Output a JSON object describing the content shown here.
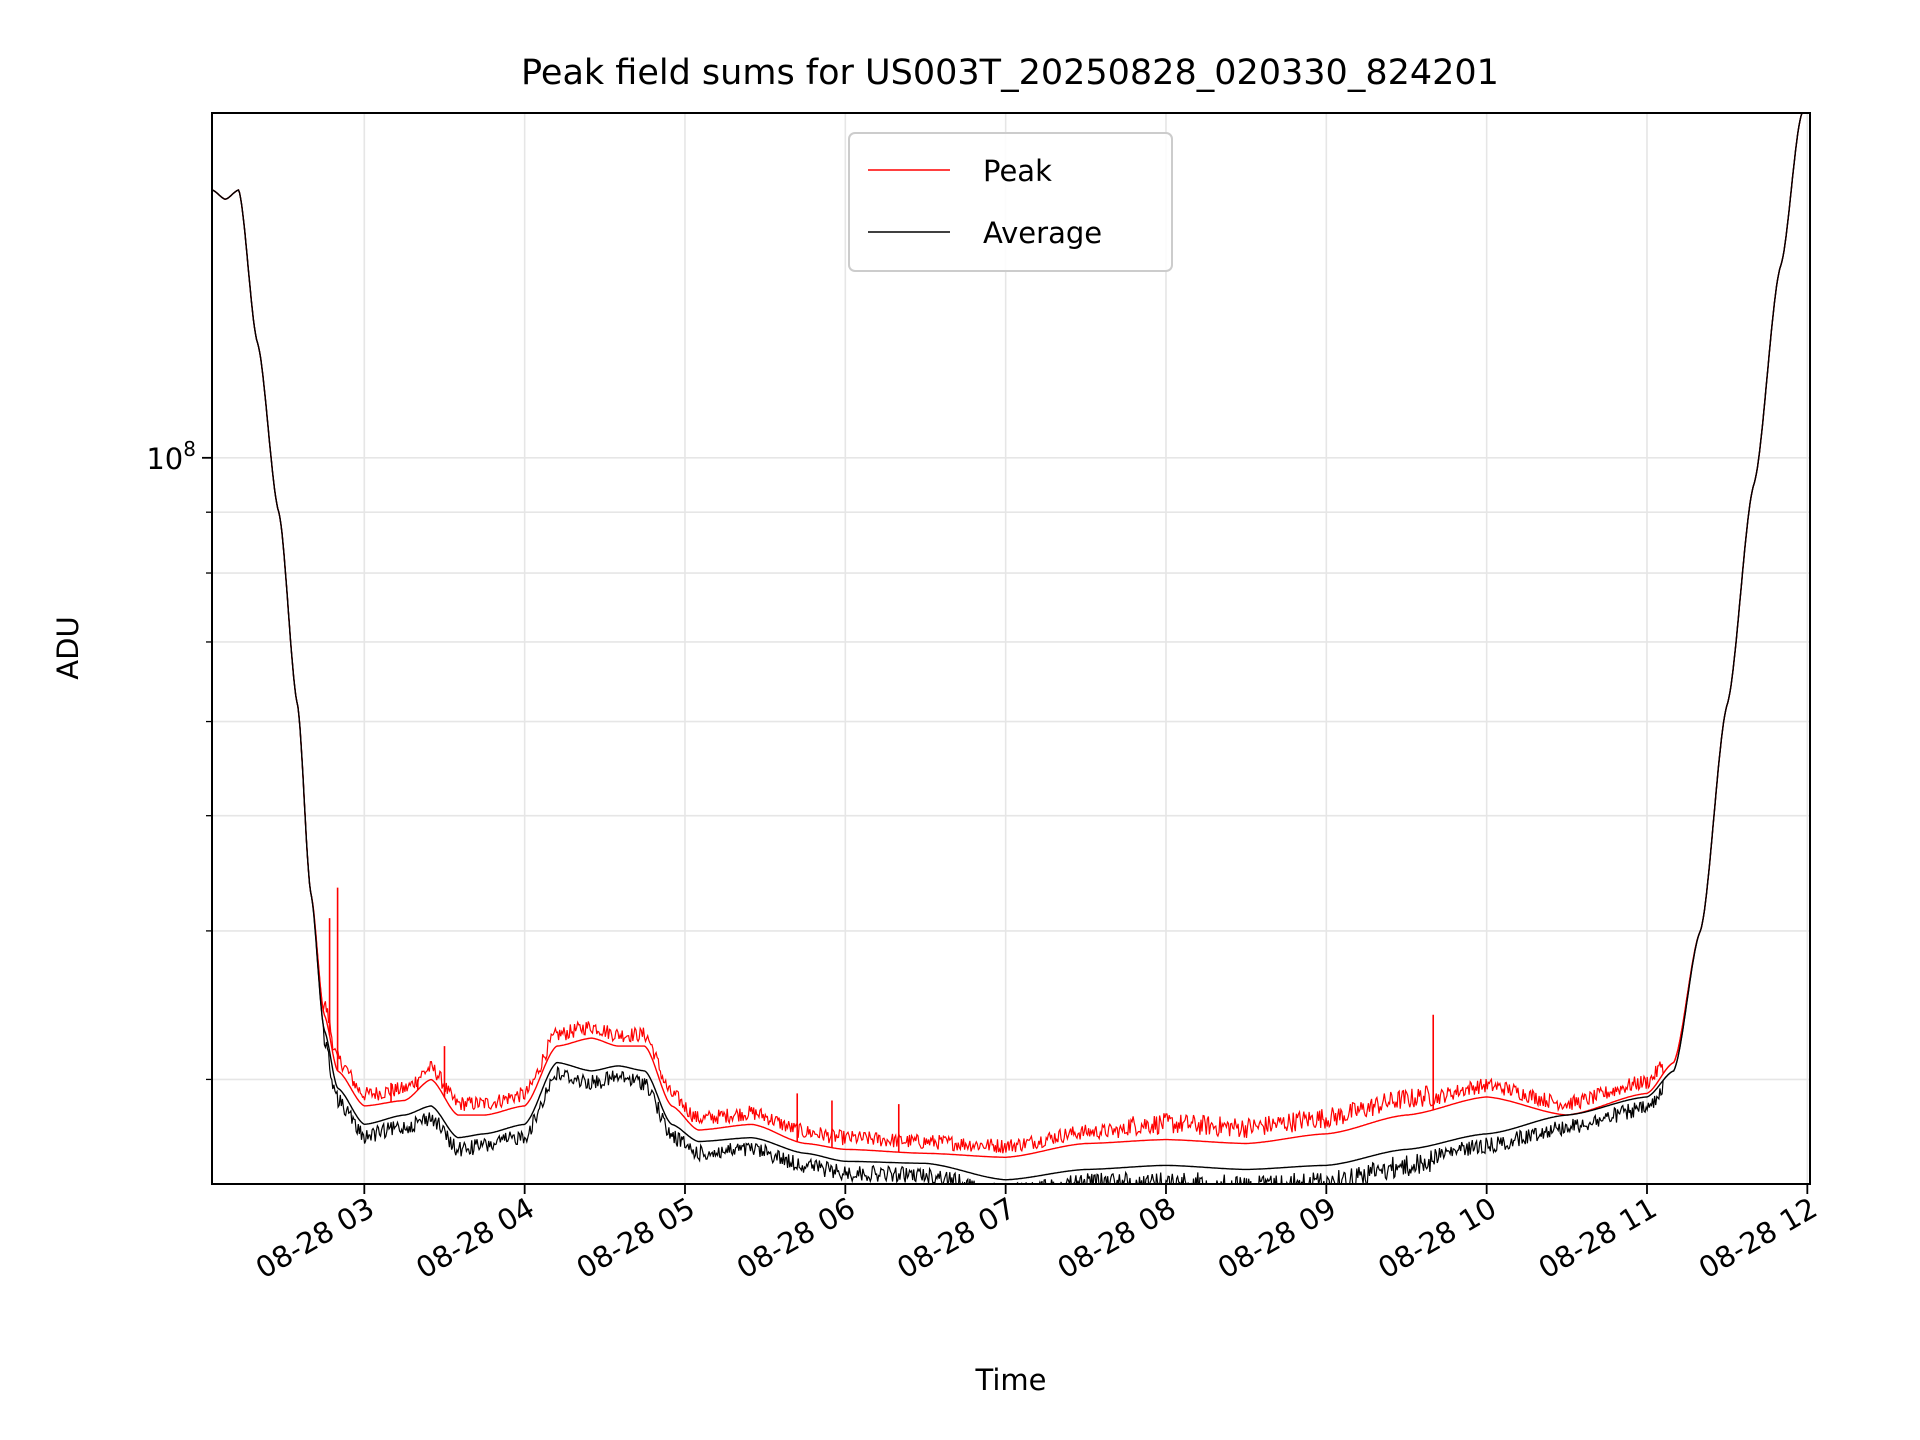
{
  "chart_data": {
    "type": "line",
    "title": "Peak field sums for US003T_20250828_020330_824201",
    "xlabel": "Time",
    "ylabel": "ADU",
    "y_scale": "log",
    "grid": true,
    "legend_placement": "upper center",
    "xlim": [
      "2025-08-28 02:03",
      "2025-08-28 12:01"
    ],
    "ylim": [
      24500000,
      195000000
    ],
    "x_ticks": [
      "08-28 03",
      "08-28 04",
      "08-28 05",
      "08-28 06",
      "08-28 07",
      "08-28 08",
      "08-28 09",
      "08-28 10",
      "08-28 11",
      "08-28 12"
    ],
    "y_ticks": [
      {
        "label": "10",
        "exponent": "8",
        "value": 100000000
      }
    ],
    "series": [
      {
        "name": "Peak",
        "color": "#ff0000",
        "x": [
          "2025-08-28 02:03",
          "2025-08-28 02:08",
          "2025-08-28 02:13",
          "2025-08-28 02:20",
          "2025-08-28 02:28",
          "2025-08-28 02:35",
          "2025-08-28 02:40",
          "2025-08-28 02:45",
          "2025-08-28 02:50",
          "2025-08-28 03:00",
          "2025-08-28 03:15",
          "2025-08-28 03:25",
          "2025-08-28 03:35",
          "2025-08-28 03:45",
          "2025-08-28 04:00",
          "2025-08-28 04:12",
          "2025-08-28 04:25",
          "2025-08-28 04:35",
          "2025-08-28 04:45",
          "2025-08-28 04:55",
          "2025-08-28 05:05",
          "2025-08-28 05:25",
          "2025-08-28 05:45",
          "2025-08-28 06:00",
          "2025-08-28 06:30",
          "2025-08-28 07:00",
          "2025-08-28 07:30",
          "2025-08-28 08:00",
          "2025-08-28 08:30",
          "2025-08-28 09:00",
          "2025-08-28 09:30",
          "2025-08-28 10:00",
          "2025-08-28 10:30",
          "2025-08-28 11:00",
          "2025-08-28 11:10",
          "2025-08-28 11:20",
          "2025-08-28 11:30",
          "2025-08-28 11:40",
          "2025-08-28 11:50",
          "2025-08-28 11:58"
        ],
        "y": [
          168000000,
          165000000,
          168000000,
          125000000,
          90000000,
          62000000,
          43000000,
          34000000,
          30500000,
          28500000,
          28800000,
          30000000,
          28000000,
          28000000,
          28500000,
          32000000,
          32500000,
          32000000,
          32000000,
          28500000,
          27200000,
          27500000,
          26500000,
          26200000,
          26000000,
          25800000,
          26500000,
          26700000,
          26500000,
          27000000,
          28000000,
          29000000,
          28000000,
          29200000,
          31000000,
          40000000,
          62000000,
          95000000,
          145000000,
          195000000
        ],
        "spikes": [
          {
            "x": "2025-08-28 02:47",
            "y": 41000000
          },
          {
            "x": "2025-08-28 02:50",
            "y": 43500000
          },
          {
            "x": "2025-08-28 03:10",
            "y": 29800000
          },
          {
            "x": "2025-08-28 03:20",
            "y": 30000000
          },
          {
            "x": "2025-08-28 03:30",
            "y": 32000000
          },
          {
            "x": "2025-08-28 05:42",
            "y": 29200000
          },
          {
            "x": "2025-08-28 05:55",
            "y": 28800000
          },
          {
            "x": "2025-08-28 06:20",
            "y": 28600000
          },
          {
            "x": "2025-08-28 09:40",
            "y": 34000000
          }
        ]
      },
      {
        "name": "Average",
        "color": "#000000",
        "x": [
          "2025-08-28 02:03",
          "2025-08-28 02:08",
          "2025-08-28 02:13",
          "2025-08-28 02:20",
          "2025-08-28 02:28",
          "2025-08-28 02:35",
          "2025-08-28 02:40",
          "2025-08-28 02:45",
          "2025-08-28 02:50",
          "2025-08-28 03:00",
          "2025-08-28 03:15",
          "2025-08-28 03:25",
          "2025-08-28 03:35",
          "2025-08-28 03:45",
          "2025-08-28 04:00",
          "2025-08-28 04:12",
          "2025-08-28 04:25",
          "2025-08-28 04:35",
          "2025-08-28 04:45",
          "2025-08-28 04:55",
          "2025-08-28 05:05",
          "2025-08-28 05:25",
          "2025-08-28 05:45",
          "2025-08-28 06:00",
          "2025-08-28 06:30",
          "2025-08-28 07:00",
          "2025-08-28 07:30",
          "2025-08-28 08:00",
          "2025-08-28 08:30",
          "2025-08-28 09:00",
          "2025-08-28 09:30",
          "2025-08-28 10:00",
          "2025-08-28 10:30",
          "2025-08-28 11:00",
          "2025-08-28 11:10",
          "2025-08-28 11:20",
          "2025-08-28 11:30",
          "2025-08-28 11:40",
          "2025-08-28 11:50",
          "2025-08-28 11:58"
        ],
        "y": [
          168000000,
          165000000,
          168000000,
          125000000,
          90000000,
          62000000,
          43000000,
          33000000,
          29500000,
          27500000,
          28000000,
          28500000,
          26800000,
          27000000,
          27500000,
          31000000,
          30500000,
          30800000,
          30500000,
          27500000,
          26600000,
          26800000,
          26000000,
          25600000,
          25500000,
          24700000,
          25200000,
          25400000,
          25200000,
          25400000,
          26200000,
          27000000,
          28000000,
          29000000,
          30500000,
          40000000,
          62000000,
          95000000,
          145000000,
          195000000
        ]
      }
    ]
  }
}
